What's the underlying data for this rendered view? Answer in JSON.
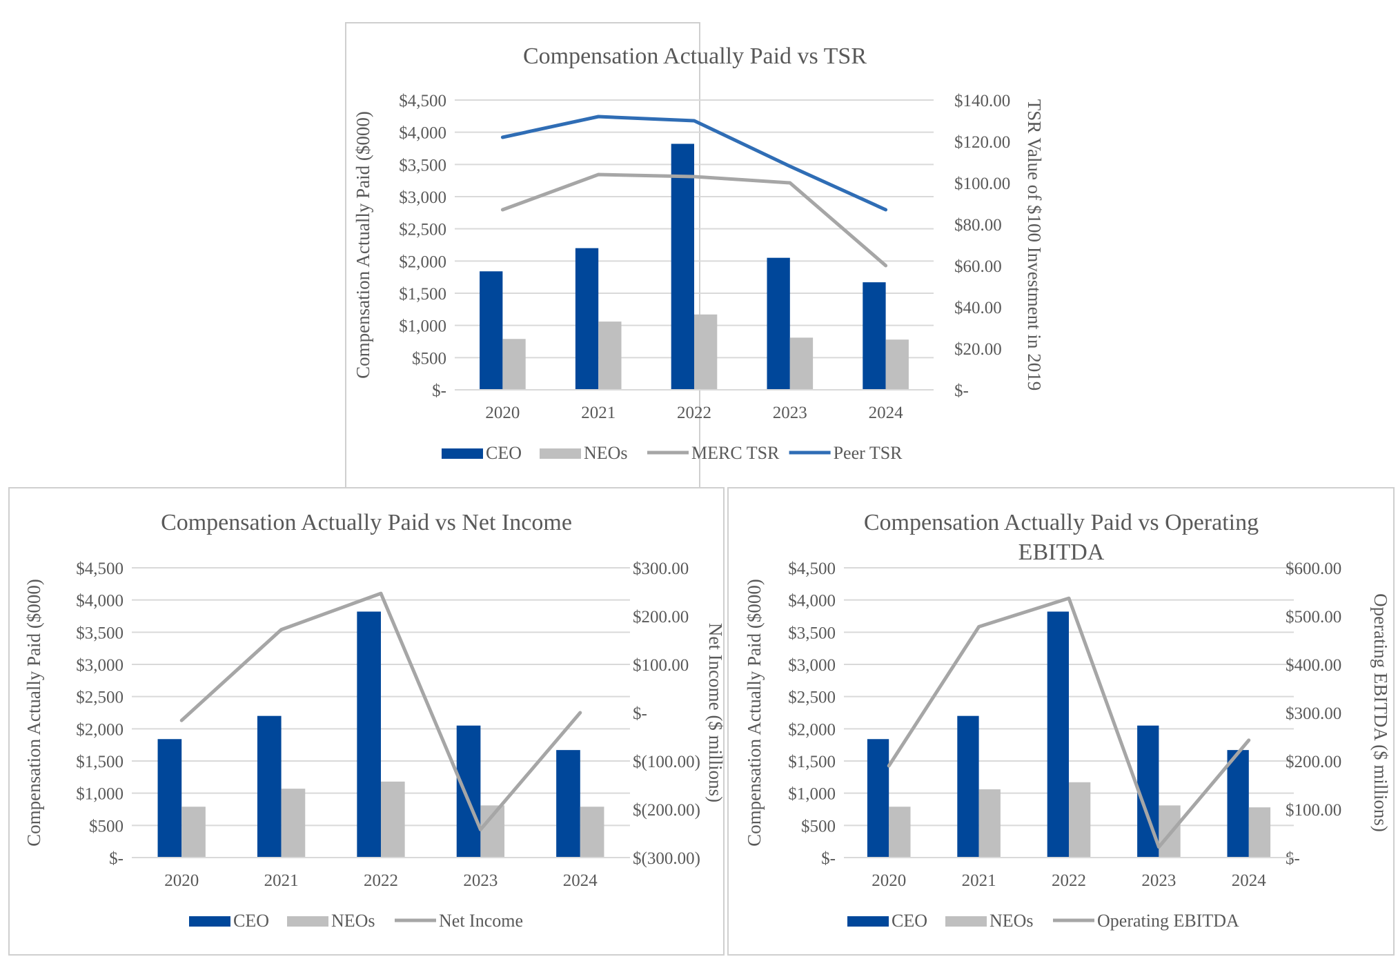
{
  "colors": {
    "ceo": "#00479a",
    "neos": "#bfbfbf",
    "merc_tsr": "#a6a6a6",
    "peer_tsr": "#2f6db5",
    "line_gray": "#a6a6a6",
    "grid": "#d9d9d9",
    "text": "#595959",
    "frame": "#cfcfcf"
  },
  "chart_data": [
    {
      "type": "bar",
      "id": "tsr",
      "title": "Compensation Actually Paid vs TSR",
      "title_lines": [
        "Compensation Actually Paid vs TSR"
      ],
      "categories": [
        "2020",
        "2021",
        "2022",
        "2023",
        "2024"
      ],
      "ylabel": "Compensation Actually Paid ($000)",
      "y2label": "TSR Value of $100 Investment in 2019",
      "ylim": [
        0,
        4500
      ],
      "yticks": [
        0,
        500,
        1000,
        1500,
        2000,
        2500,
        3000,
        3500,
        4000,
        4500
      ],
      "ytick_labels": [
        "$-",
        "$500",
        "$1,000",
        "$1,500",
        "$2,000",
        "$2,500",
        "$3,000",
        "$3,500",
        "$4,000",
        "$4,500"
      ],
      "y2lim": [
        0,
        140
      ],
      "y2ticks": [
        0,
        20,
        40,
        60,
        80,
        100,
        120,
        140
      ],
      "y2tick_labels": [
        "$-",
        "$20.00",
        "$40.00",
        "$60.00",
        "$80.00",
        "$100.00",
        "$120.00",
        "$140.00"
      ],
      "bars": [
        {
          "name": "CEO",
          "key": "ceo",
          "values": [
            1840,
            2200,
            3820,
            2050,
            1670
          ]
        },
        {
          "name": "NEOs",
          "key": "neos",
          "values": [
            790,
            1060,
            1170,
            810,
            780
          ]
        }
      ],
      "lines": [
        {
          "name": "MERC TSR",
          "key": "merc_tsr",
          "values": [
            87,
            104,
            103,
            100,
            60
          ]
        },
        {
          "name": "Peer TSR",
          "key": "peer_tsr",
          "values": [
            122,
            132,
            130,
            108,
            87
          ]
        }
      ],
      "legend": [
        "CEO",
        "NEOs",
        "MERC TSR",
        "Peer TSR"
      ]
    },
    {
      "type": "bar",
      "id": "net-income",
      "title": "Compensation Actually Paid vs Net Income",
      "title_lines": [
        "Compensation Actually Paid vs Net Income"
      ],
      "categories": [
        "2020",
        "2021",
        "2022",
        "2023",
        "2024"
      ],
      "ylabel": "Compensation Actually Paid ($000)",
      "y2label": "Net Income ($ millions)",
      "ylim": [
        0,
        4500
      ],
      "yticks": [
        0,
        500,
        1000,
        1500,
        2000,
        2500,
        3000,
        3500,
        4000,
        4500
      ],
      "ytick_labels": [
        "$-",
        "$500",
        "$1,000",
        "$1,500",
        "$2,000",
        "$2,500",
        "$3,000",
        "$3,500",
        "$4,000",
        "$4,500"
      ],
      "y2lim": [
        -300,
        300
      ],
      "y2ticks": [
        -300,
        -200,
        -100,
        0,
        100,
        200,
        300
      ],
      "y2tick_labels": [
        "$(300.00)",
        "$(200.00)",
        "$(100.00)",
        "$-",
        "$100.00",
        "$200.00",
        "$300.00"
      ],
      "bars": [
        {
          "name": "CEO",
          "key": "ceo",
          "values": [
            1840,
            2200,
            3820,
            2050,
            1670
          ]
        },
        {
          "name": "NEOs",
          "key": "neos",
          "values": [
            790,
            1070,
            1180,
            810,
            790
          ]
        }
      ],
      "lines": [
        {
          "name": "Net Income",
          "key": "line_gray",
          "values": [
            -16,
            172,
            247,
            -242,
            0
          ]
        }
      ],
      "legend": [
        "CEO",
        "NEOs",
        "Net Income"
      ]
    },
    {
      "type": "bar",
      "id": "ebitda",
      "title": "Compensation Actually Paid vs Operating EBITDA",
      "title_lines": [
        "Compensation Actually Paid vs Operating",
        "EBITDA"
      ],
      "categories": [
        "2020",
        "2021",
        "2022",
        "2023",
        "2024"
      ],
      "ylabel": "Compensation Actually Paid ($000)",
      "y2label": "Operating EBITDA ($ millions)",
      "ylim": [
        0,
        4500
      ],
      "yticks": [
        0,
        500,
        1000,
        1500,
        2000,
        2500,
        3000,
        3500,
        4000,
        4500
      ],
      "ytick_labels": [
        "$-",
        "$500",
        "$1,000",
        "$1,500",
        "$2,000",
        "$2,500",
        "$3,000",
        "$3,500",
        "$4,000",
        "$4,500"
      ],
      "y2lim": [
        0,
        600
      ],
      "y2ticks": [
        0,
        100,
        200,
        300,
        400,
        500,
        600
      ],
      "y2tick_labels": [
        "$-",
        "$100.00",
        "$200.00",
        "$300.00",
        "$400.00",
        "$500.00",
        "$600.00"
      ],
      "bars": [
        {
          "name": "CEO",
          "key": "ceo",
          "values": [
            1840,
            2200,
            3820,
            2050,
            1670
          ]
        },
        {
          "name": "NEOs",
          "key": "neos",
          "values": [
            790,
            1060,
            1170,
            810,
            780
          ]
        }
      ],
      "lines": [
        {
          "name": "Operating EBITDA",
          "key": "line_gray",
          "values": [
            190,
            478,
            537,
            22,
            243
          ]
        }
      ],
      "legend": [
        "CEO",
        "NEOs",
        "Operating EBITDA"
      ]
    }
  ]
}
